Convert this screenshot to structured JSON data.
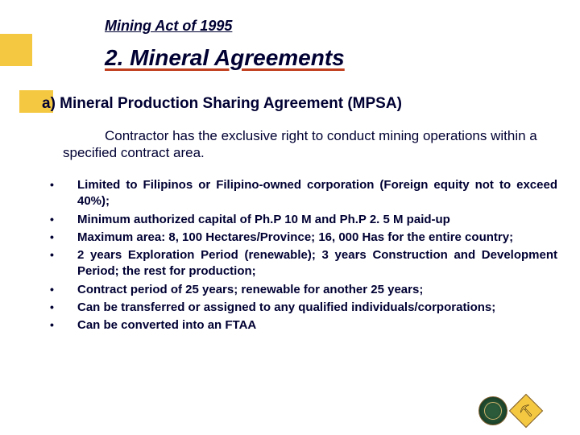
{
  "colors": {
    "accent_yellow": "#f5c842",
    "text_navy": "#000033",
    "underline_rust": "#c04020",
    "background": "#ffffff"
  },
  "typography": {
    "family": "Verdana",
    "title_size_pt": 18,
    "section_size_pt": 28,
    "subheading_size_pt": 19,
    "body_size_pt": 17,
    "bullet_size_pt": 15
  },
  "header": {
    "page_title": "Mining Act of 1995",
    "section_title": "2. Mineral Agreements"
  },
  "subheading": "a)  Mineral Production Sharing Agreement (MPSA)",
  "description": "Contractor has the exclusive right to conduct mining operations within a specified contract area.",
  "bullets": [
    "Limited to Filipinos or Filipino-owned corporation\n(Foreign equity not to exceed 40%);",
    "Minimum authorized capital of Ph.P 10 M and Ph.P 2. 5 M paid-up",
    "Maximum area: 8, 100 Hectares/Province; 16, 000 Has for the entire country;",
    "2 years Exploration Period (renewable); 3 years Construction and Development Period; the rest for production;",
    " Contract period of  25 years;  renewable for another  25 years;",
    "Can be transferred or assigned to any qualified individuals/corporations;",
    "Can be converted into an FTAA"
  ],
  "logos": {
    "seal_name": "denr-seal",
    "badge_name": "mining-badge"
  }
}
